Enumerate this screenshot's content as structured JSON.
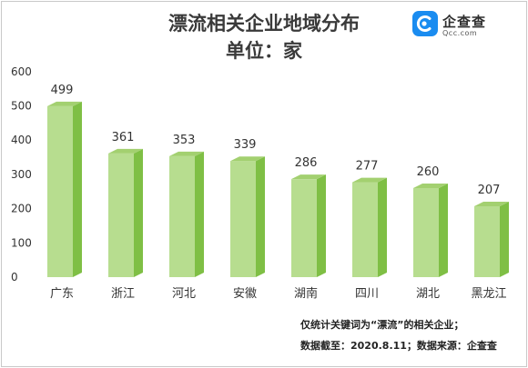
{
  "header": {
    "title": "漂流相关企业地域分布",
    "subtitle": "单位：家"
  },
  "logo": {
    "name": "企查查",
    "url": "Qcc.com",
    "icon": "qcc-logo-icon",
    "color": "#1a8cf0"
  },
  "footnotes": {
    "line1": "仅统计关键词为“漂流”的相关企业；",
    "line2": "数据截至：2020.8.11；数据来源：企查查"
  },
  "chart_data": {
    "type": "bar",
    "title": "漂流相关企业地域分布",
    "subtitle": "单位：家",
    "categories": [
      "广东",
      "浙江",
      "河北",
      "安徽",
      "湖南",
      "四川",
      "湖北",
      "黑龙江"
    ],
    "values": [
      499,
      361,
      353,
      339,
      286,
      277,
      260,
      207
    ],
    "ylim": [
      0,
      600
    ],
    "yticks": [
      0,
      100,
      200,
      300,
      400,
      500,
      600
    ],
    "grid": false,
    "legend": "none",
    "colors": {
      "front": "#b7dd8f",
      "side": "#7fbf45",
      "top": "#a3d070"
    }
  }
}
